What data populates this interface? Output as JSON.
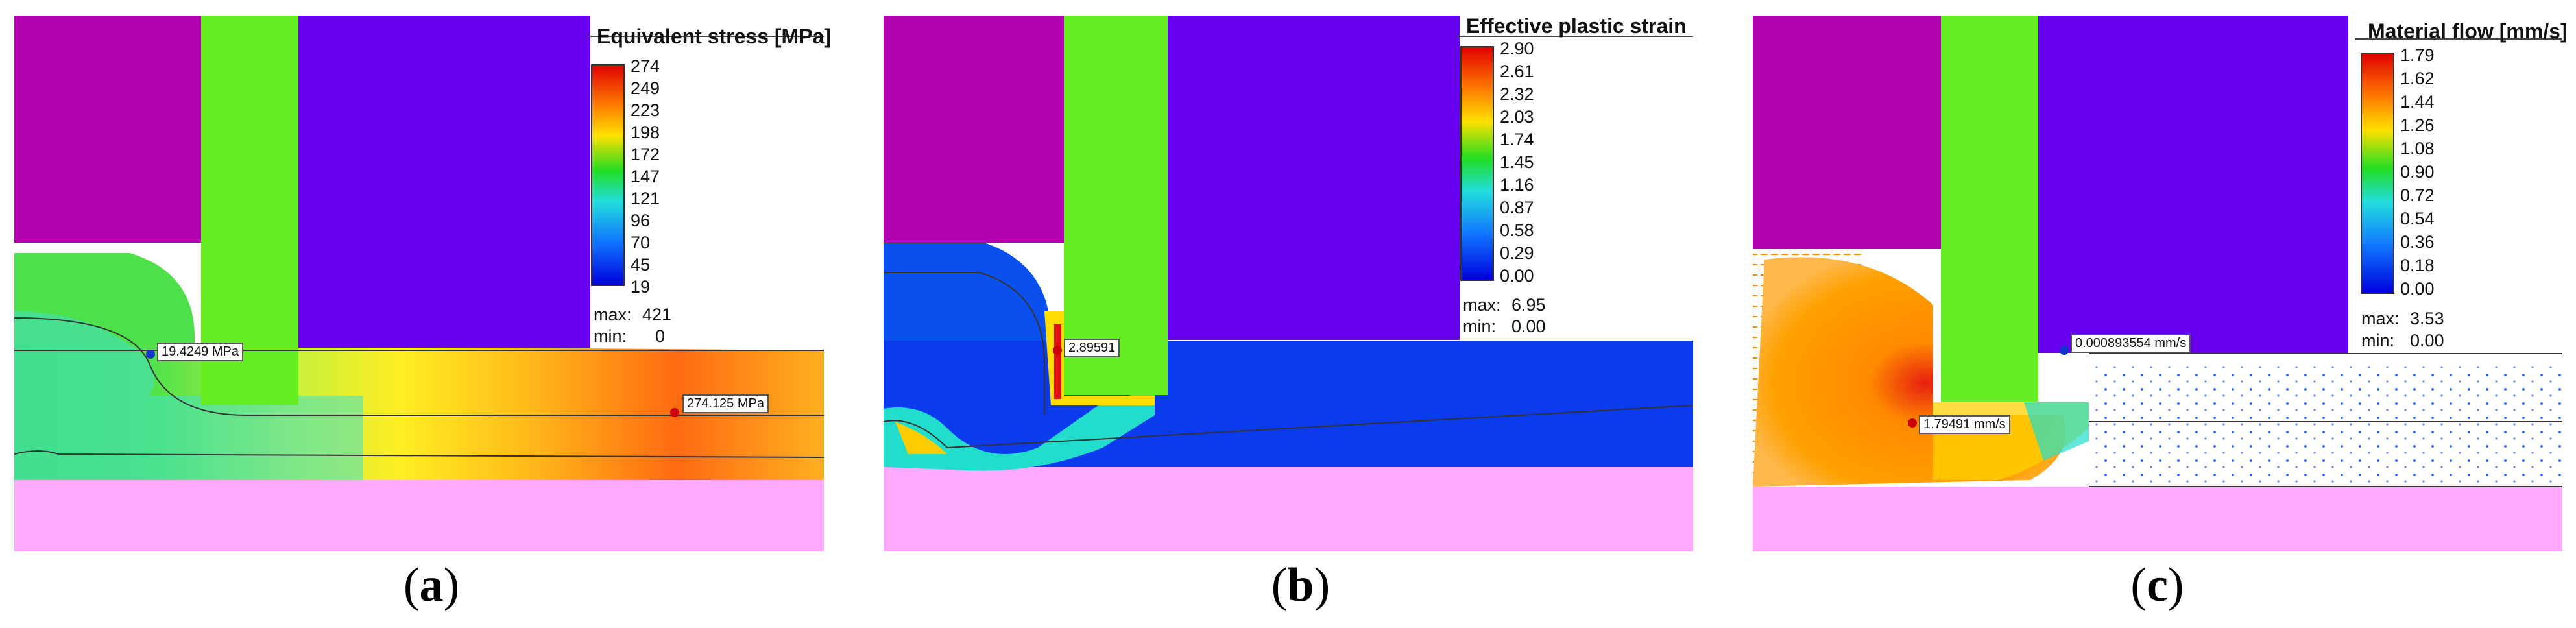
{
  "panels": [
    {
      "id": "a",
      "caption_open": "(",
      "caption_letter": "a",
      "caption_close": ")",
      "legend_title": "Equivalent stress [MPa]",
      "ticks": [
        "274",
        "249",
        "223",
        "198",
        "172",
        "147",
        "121",
        "96",
        "70",
        "45",
        "19"
      ],
      "max_label": "max:",
      "max_value": "421",
      "min_label": "min:",
      "min_value": "0",
      "probes": [
        "19.4249 MPa",
        "274.125 MPa"
      ]
    },
    {
      "id": "b",
      "caption_open": "(",
      "caption_letter": "b",
      "caption_close": ")",
      "legend_title": "Effective plastic strain",
      "ticks": [
        "2.90",
        "2.61",
        "2.32",
        "2.03",
        "1.74",
        "1.45",
        "1.16",
        "0.87",
        "0.58",
        "0.29",
        "0.00"
      ],
      "max_label": "max:",
      "max_value": "6.95",
      "min_label": "min:",
      "min_value": "0.00",
      "probes": [
        "2.89591"
      ]
    },
    {
      "id": "c",
      "caption_open": "(",
      "caption_letter": "c",
      "caption_close": ")",
      "legend_title": "Material flow [mm/s]",
      "ticks": [
        "1.79",
        "1.62",
        "1.44",
        "1.26",
        "1.08",
        "0.90",
        "0.72",
        "0.54",
        "0.36",
        "0.18",
        "0.00"
      ],
      "max_label": "max:",
      "max_value": "3.53",
      "min_label": "min:",
      "min_value": "0.00",
      "probes": [
        "0.000893554 mm/s",
        "1.79491 mm/s"
      ]
    }
  ],
  "colors": {
    "upper_die": "#b000b0",
    "punch": "#66ee22",
    "sheet_top": "#6600ee",
    "lower_die": "#ffaaff"
  }
}
